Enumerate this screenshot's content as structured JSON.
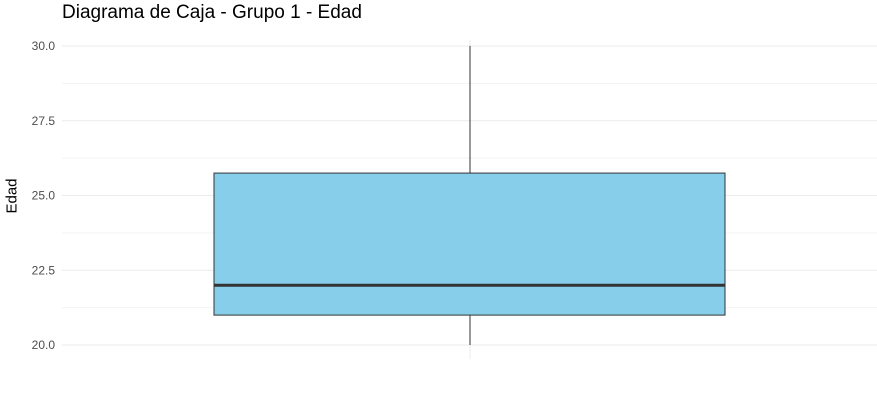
{
  "chart_data": {
    "type": "box",
    "title": "Diagrama de Caja - Grupo 1 - Edad",
    "xlabel": "",
    "ylabel": "Edad",
    "ylim": [
      20,
      30
    ],
    "y_ticks": [
      "20.0",
      "22.5",
      "25.0",
      "27.5",
      "30.0"
    ],
    "grid": true,
    "legend": "none",
    "box": {
      "min": 20.0,
      "q1": 21.0,
      "median": 22.0,
      "q3": 25.75,
      "max": 30.0
    },
    "colors": {
      "box_fill": "#87CEEB",
      "box_stroke": "#333333",
      "median_stroke": "#333333",
      "grid": "#ebebeb"
    }
  }
}
